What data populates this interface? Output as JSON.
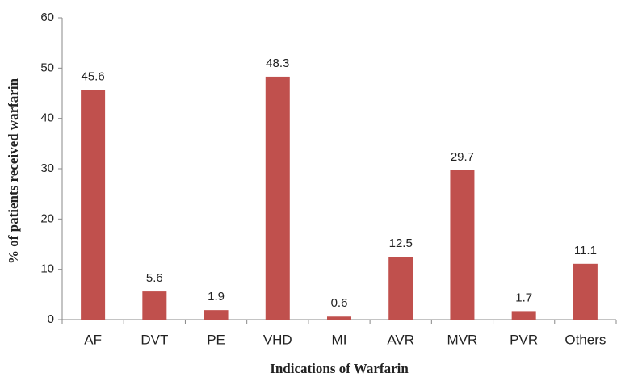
{
  "chart_data": {
    "type": "bar",
    "xlabel": "Indications of Warfarin",
    "ylabel": "% of patients received warfarin",
    "categories": [
      "AF",
      "DVT",
      "PE",
      "VHD",
      "MI",
      "AVR",
      "MVR",
      "PVR",
      "Others"
    ],
    "values": [
      45.6,
      5.6,
      1.9,
      48.3,
      0.6,
      12.5,
      29.7,
      1.7,
      11.1
    ],
    "color": "#c0504d",
    "ylim": [
      0,
      60
    ],
    "yticks": [
      0,
      10,
      20,
      30,
      40,
      50,
      60
    ],
    "grid": false
  }
}
